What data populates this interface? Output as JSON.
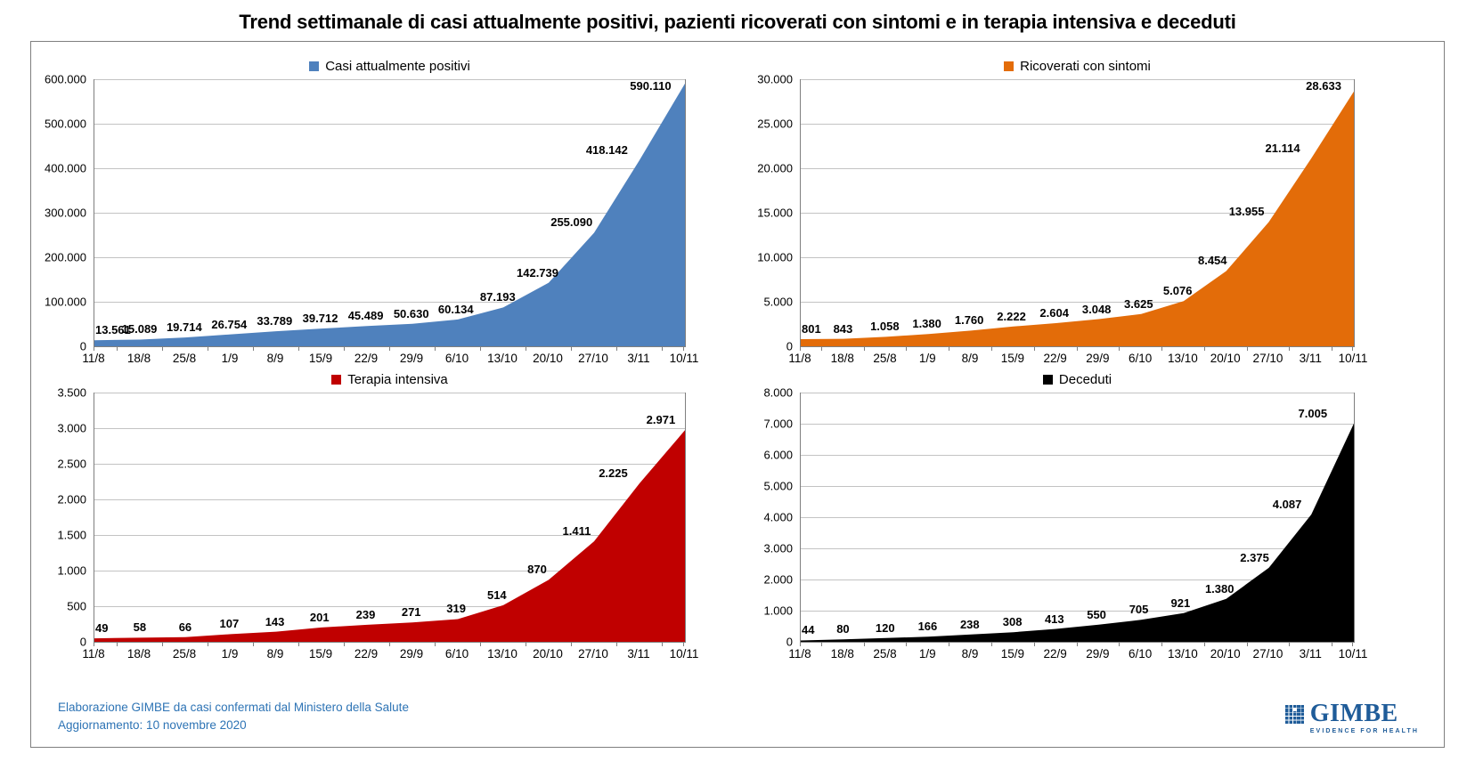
{
  "title": "Trend settimanale di casi attualmente positivi, pazienti ricoverati con sintomi e in terapia intensiva e deceduti",
  "footer": {
    "line1": "Elaborazione GIMBE da casi confermati dal Ministero della Salute",
    "line2": "Aggiornamento: 10 novembre 2020",
    "text_color": "#2E74B5"
  },
  "logo": {
    "name": "GIMBE",
    "tagline": "EVIDENCE FOR HEALTH",
    "color": "#1F5C99"
  },
  "chart_data": {
    "type": "area",
    "grid": true,
    "legend_position": "top",
    "categories": [
      "11/8",
      "18/8",
      "25/8",
      "1/9",
      "8/9",
      "15/9",
      "22/9",
      "29/9",
      "6/10",
      "13/10",
      "20/10",
      "27/10",
      "3/11",
      "10/11"
    ],
    "charts": [
      {
        "title": "Casi attualmente positivi",
        "color": "#4F81BD",
        "ylim": [
          0,
          600000
        ],
        "ystep": 100000,
        "ytick_labels": [
          "0",
          "100.000",
          "200.000",
          "300.000",
          "400.000",
          "500.000",
          "600.000"
        ],
        "values": [
          13561,
          15089,
          19714,
          26754,
          33789,
          39712,
          45489,
          50630,
          60134,
          87193,
          142739,
          255090,
          418142,
          590110
        ],
        "value_labels": [
          "13.561",
          "15.089",
          "19.714",
          "26.754",
          "33.789",
          "39.712",
          "45.489",
          "50.630",
          "60.134",
          "87.193",
          "142.739",
          "255.090",
          "418.142",
          "590.110"
        ]
      },
      {
        "title": "Ricoverati con sintomi",
        "color": "#E36C09",
        "ylim": [
          0,
          30000
        ],
        "ystep": 5000,
        "ytick_labels": [
          "0",
          "5.000",
          "10.000",
          "15.000",
          "20.000",
          "25.000",
          "30.000"
        ],
        "values": [
          801,
          843,
          1058,
          1380,
          1760,
          2222,
          2604,
          3048,
          3625,
          5076,
          8454,
          13955,
          21114,
          28633
        ],
        "value_labels": [
          "801",
          "843",
          "1.058",
          "1.380",
          "1.760",
          "2.222",
          "2.604",
          "3.048",
          "3.625",
          "5.076",
          "8.454",
          "13.955",
          "21.114",
          "28.633"
        ]
      },
      {
        "title": "Terapia intensiva",
        "color": "#C00000",
        "ylim": [
          0,
          3500
        ],
        "ystep": 500,
        "ytick_labels": [
          "0",
          "500",
          "1.000",
          "1.500",
          "2.000",
          "2.500",
          "3.000",
          "3.500"
        ],
        "values": [
          49,
          58,
          66,
          107,
          143,
          201,
          239,
          271,
          319,
          514,
          870,
          1411,
          2225,
          2971
        ],
        "value_labels": [
          "49",
          "58",
          "66",
          "107",
          "143",
          "201",
          "239",
          "271",
          "319",
          "514",
          "870",
          "1.411",
          "2.225",
          "2.971"
        ]
      },
      {
        "title": "Deceduti",
        "color": "#000000",
        "ylim": [
          0,
          8000
        ],
        "ystep": 1000,
        "ytick_labels": [
          "0",
          "1.000",
          "2.000",
          "3.000",
          "4.000",
          "5.000",
          "6.000",
          "7.000",
          "8.000"
        ],
        "values": [
          44,
          80,
          120,
          166,
          238,
          308,
          413,
          550,
          705,
          921,
          1380,
          2375,
          4087,
          7005
        ],
        "value_labels": [
          "44",
          "80",
          "120",
          "166",
          "238",
          "308",
          "413",
          "550",
          "705",
          "921",
          "1.380",
          "2.375",
          "4.087",
          "7.005"
        ]
      }
    ]
  }
}
